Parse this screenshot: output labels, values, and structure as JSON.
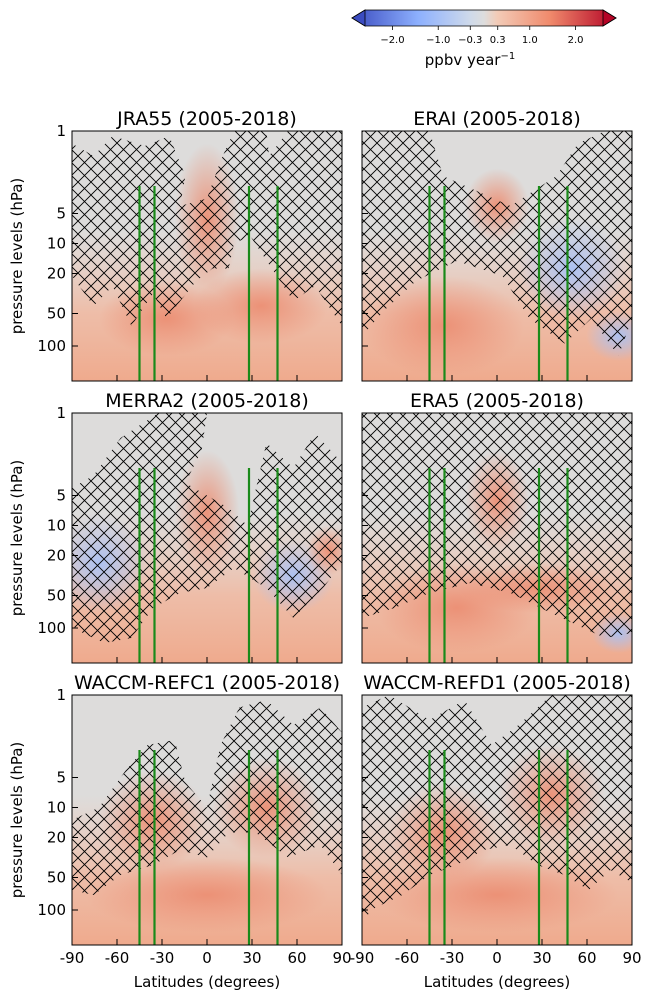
{
  "colorbar": {
    "label": "ppbv year",
    "label_exp": "−1",
    "ticks": [
      {
        "value": -2.0,
        "label": "−2.0"
      },
      {
        "value": -1.0,
        "label": "−1.0"
      },
      {
        "value": -0.3,
        "label": "−0.3"
      },
      {
        "value": 0.3,
        "label": "0.3"
      },
      {
        "value": 1.0,
        "label": "1.0"
      },
      {
        "value": 2.0,
        "label": "2.0"
      }
    ],
    "range": [
      -2.6,
      2.6
    ],
    "extend": "both",
    "colors": {
      "low": "#3b4cc0",
      "mid": "#dddddd",
      "high": "#b40426"
    }
  },
  "chart_data": [
    {
      "type": "heatmap",
      "title": "JRA55 (2005-2018)",
      "xlabel": "",
      "ylabel": "pressure levels (hPa)",
      "xlim": [
        -90,
        90
      ],
      "ylim": [
        1,
        150
      ],
      "y_scale": "log",
      "yticks": [
        "1",
        "5",
        "10",
        "20",
        "50",
        "100"
      ],
      "xticks": [],
      "vertical_lines_lat": [
        -45,
        -35,
        28,
        47
      ],
      "hatched": "upper portion above ~20 hPa except equatorial core; edges",
      "values_ppbv_per_year": {
        "near_50hPa_midlats": 1.0,
        "equator_10hPa": 0.8,
        "upper_1hPa": 0.2
      }
    },
    {
      "type": "heatmap",
      "title": "ERAI (2005-2018)",
      "xlabel": "",
      "ylabel": "",
      "xlim": [
        -90,
        90
      ],
      "ylim": [
        1,
        150
      ],
      "y_scale": "log",
      "yticks": [],
      "xticks": [],
      "vertical_lines_lat": [
        -45,
        -35,
        28,
        47
      ],
      "hatched": "most of the panel except SH lower stratosphere",
      "values_ppbv_per_year": {
        "SH_50hPa": 1.5,
        "NH_30hPa": -0.6,
        "NH_50hPa_high": -0.9
      }
    },
    {
      "type": "heatmap",
      "title": "MERRA2 (2005-2018)",
      "xlabel": "",
      "ylabel": "pressure levels (hPa)",
      "xlim": [
        -90,
        90
      ],
      "ylim": [
        1,
        150
      ],
      "y_scale": "log",
      "yticks": [
        "1",
        "5",
        "10",
        "20",
        "50",
        "100"
      ],
      "xticks": [],
      "vertical_lines_lat": [
        -45,
        -35,
        28,
        47
      ],
      "hatched": "middle stratosphere at both hemispheres",
      "values_ppbv_per_year": {
        "SH_20hPa": -0.6,
        "equator_7hPa": 1.2,
        "lower_100hPa": 0.6
      }
    },
    {
      "type": "heatmap",
      "title": "ERA5 (2005-2018)",
      "xlabel": "",
      "ylabel": "",
      "xlim": [
        -90,
        90
      ],
      "ylim": [
        1,
        150
      ],
      "y_scale": "log",
      "yticks": [],
      "xticks": [],
      "vertical_lines_lat": [
        -45,
        -35,
        28,
        47
      ],
      "hatched": "nearly the entire panel",
      "values_ppbv_per_year": {
        "lower_50hPa": 0.8,
        "NH_80hPa_high": -0.5
      }
    },
    {
      "type": "heatmap",
      "title": "WACCM-REFC1 (2005-2018)",
      "xlabel": "Latitudes (degrees)",
      "ylabel": "pressure levels (hPa)",
      "xlim": [
        -90,
        90
      ],
      "ylim": [
        1,
        150
      ],
      "y_scale": "log",
      "yticks": [
        "1",
        "5",
        "10",
        "20",
        "50",
        "100"
      ],
      "xticks": [
        "-90",
        "-60",
        "-30",
        "0",
        "30",
        "60",
        "90"
      ],
      "vertical_lines_lat": [
        -45,
        -35,
        28,
        47
      ],
      "hatched": "middle stratosphere between ~3 and ~50 hPa",
      "values_ppbv_per_year": {
        "lower_80hPa": 0.7,
        "upper_1hPa": 0.1
      }
    },
    {
      "type": "heatmap",
      "title": "WACCM-REFD1 (2005-2018)",
      "xlabel": "Latitudes (degrees)",
      "ylabel": "",
      "xlim": [
        -90,
        90
      ],
      "ylim": [
        1,
        150
      ],
      "y_scale": "log",
      "yticks": [],
      "xticks": [
        "-90",
        "-60",
        "-30",
        "0",
        "30",
        "60",
        "90"
      ],
      "vertical_lines_lat": [
        -45,
        -35,
        28,
        47
      ],
      "hatched": "most of panel above ~50 hPa",
      "values_ppbv_per_year": {
        "lower_80hPa": 0.7,
        "upper_1hPa": 0.1
      }
    }
  ]
}
